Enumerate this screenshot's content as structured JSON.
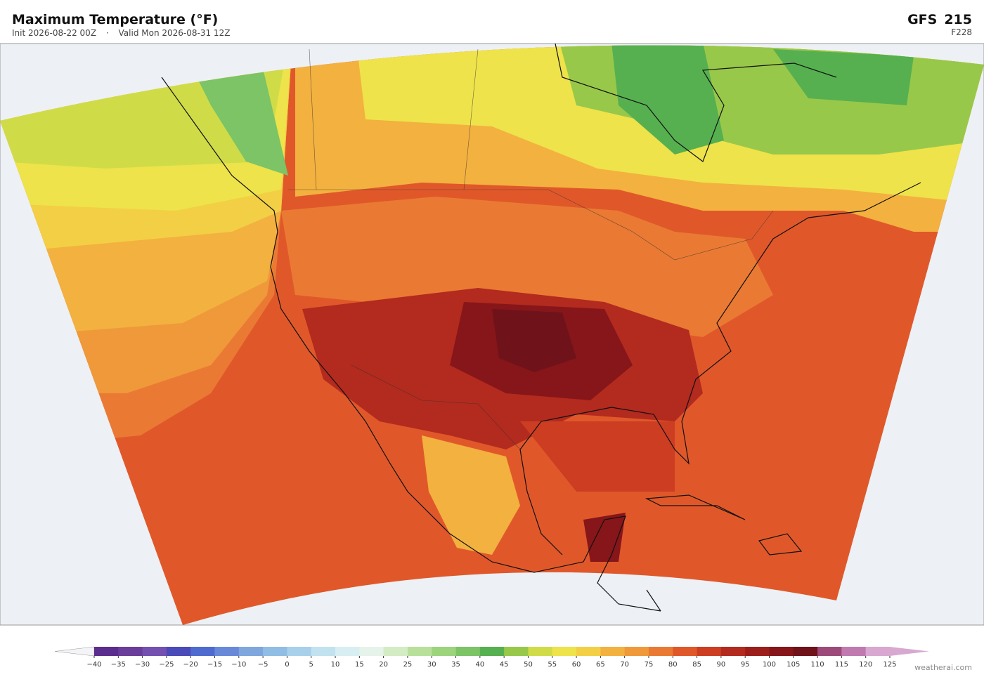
{
  "header": {
    "title": "Maximum Temperature  (°F)",
    "init": "Init 2026-08-22 00Z",
    "separator": "·",
    "valid": "Valid Mon 2026-08-31 12Z",
    "model": "GFS",
    "run": "215",
    "forecast_hour": "F228"
  },
  "colorbar": {
    "ticks": [
      {
        "value": -40,
        "label": "−40"
      },
      {
        "value": -35,
        "label": "−35"
      },
      {
        "value": -30,
        "label": "−30"
      },
      {
        "value": -25,
        "label": "−25"
      },
      {
        "value": -20,
        "label": "−20"
      },
      {
        "value": -15,
        "label": "−15"
      },
      {
        "value": -10,
        "label": "−10"
      },
      {
        "value": -5,
        "label": "−5"
      },
      0,
      5,
      10,
      15,
      20,
      25,
      30,
      35,
      40,
      45,
      50,
      55,
      60,
      65,
      70,
      75,
      80,
      85,
      90,
      95,
      100,
      105,
      110,
      115,
      120,
      125
    ],
    "colors": [
      "#5b2d8e",
      "#6a3d9a",
      "#7450b0",
      "#4a4ab8",
      "#4f6bd0",
      "#6889d8",
      "#7fa6dd",
      "#90bde3",
      "#a8d0ea",
      "#c2e2f0",
      "#d8eef2",
      "#e6f3ea",
      "#d3ecc4",
      "#b8e09a",
      "#9cd47e",
      "#7cc466",
      "#56b050",
      "#98c84a",
      "#cfdc48",
      "#eee34a",
      "#f3cf45",
      "#f3b13f",
      "#ef993a",
      "#ea7a33",
      "#e0582a",
      "#cc3d22",
      "#b32a1e",
      "#9c1e1b",
      "#86161a",
      "#70121a",
      "#9c4a7a",
      "#c07ab0",
      "#d8a8d0"
    ],
    "extend_colors": [
      "#f4f4f8",
      "#d8a8d0"
    ]
  },
  "footer": {
    "watermark": "weatherai.com"
  }
}
